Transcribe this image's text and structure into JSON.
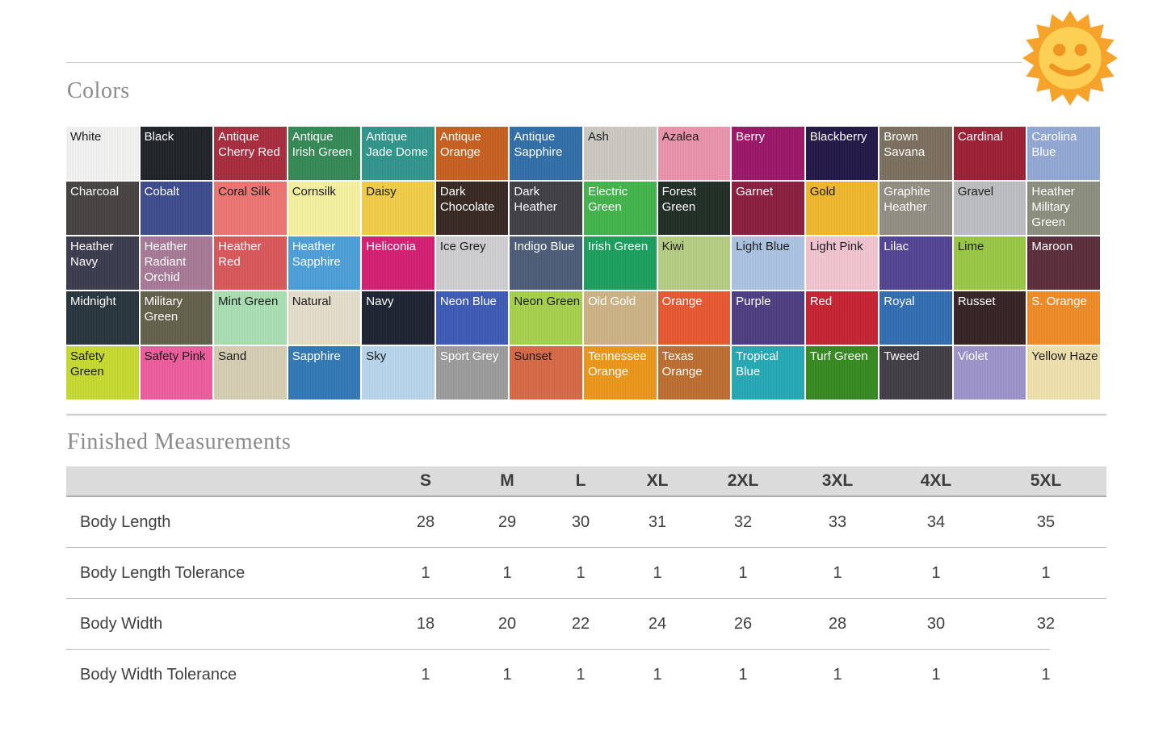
{
  "ui": {
    "heading_text_color": "#8a8a8a",
    "table_header_bg": "#dbdbdb",
    "divider_color": "#b9b9b9",
    "sun_ray_color": "#f5a32b",
    "sun_face_color": "#fccf55",
    "sun_feature_color": "#ef9521"
  },
  "sun_icon": "sun-with-face",
  "colors": {
    "heading": "Colors",
    "swatches": [
      {
        "name": "White",
        "hex": "#f4f4f3",
        "text": "#1c1c1c"
      },
      {
        "name": "Black",
        "hex": "#1d2226",
        "text": "#ffffff"
      },
      {
        "name": "Antique Cherry Red",
        "hex": "#a82a3c",
        "text": "#ffffff"
      },
      {
        "name": "Antique Irish Green",
        "hex": "#338a55",
        "text": "#ffffff"
      },
      {
        "name": "Antique Jade Dome",
        "hex": "#2e958b",
        "text": "#ffffff"
      },
      {
        "name": "Antique Orange",
        "hex": "#c75f1e",
        "text": "#ffffff"
      },
      {
        "name": "Antique Sapphire",
        "hex": "#2f6fa9",
        "text": "#ffffff"
      },
      {
        "name": "Ash",
        "hex": "#cdcac4",
        "text": "#1c1c1c"
      },
      {
        "name": "Azalea",
        "hex": "#ec95ad",
        "text": "#1c1c1c"
      },
      {
        "name": "Berry",
        "hex": "#9d1468",
        "text": "#ffffff"
      },
      {
        "name": "Blackberry",
        "hex": "#211647",
        "text": "#ffffff"
      },
      {
        "name": "Brown Savana",
        "hex": "#7b6f5e",
        "text": "#ffffff"
      },
      {
        "name": "Cardinal",
        "hex": "#9d1c34",
        "text": "#ffffff"
      },
      {
        "name": "Carolina Blue",
        "hex": "#94a9d7",
        "text": "#ffffff"
      },
      {
        "name": "Charcoal",
        "hex": "#454140",
        "text": "#ffffff"
      },
      {
        "name": "Cobalt",
        "hex": "#3d4b8d",
        "text": "#ffffff"
      },
      {
        "name": "Coral Silk",
        "hex": "#ef7573",
        "text": "#1c1c1c"
      },
      {
        "name": "Cornsilk",
        "hex": "#f7f3a1",
        "text": "#1c1c1c"
      },
      {
        "name": "Daisy",
        "hex": "#f3cf47",
        "text": "#1c1c1c"
      },
      {
        "name": "Dark Chocolate",
        "hex": "#352722",
        "text": "#ffffff"
      },
      {
        "name": "Dark Heather",
        "hex": "#3f3e45",
        "text": "#ffffff"
      },
      {
        "name": "Electric Green",
        "hex": "#40b54a",
        "text": "#ffffff"
      },
      {
        "name": "Forest Green",
        "hex": "#1f2c23",
        "text": "#ffffff"
      },
      {
        "name": "Garnet",
        "hex": "#8c1c3e",
        "text": "#ffffff"
      },
      {
        "name": "Gold",
        "hex": "#f2b82c",
        "text": "#1c1c1c"
      },
      {
        "name": "Graphite Heather",
        "hex": "#928e84",
        "text": "#ffffff"
      },
      {
        "name": "Gravel",
        "hex": "#bdbfc3",
        "text": "#1c1c1c"
      },
      {
        "name": "Heather Military Green",
        "hex": "#8c8f7e",
        "text": "#ffffff"
      },
      {
        "name": "Heather Navy",
        "hex": "#393b4d",
        "text": "#ffffff"
      },
      {
        "name": "Heather Radiant Orchid",
        "hex": "#a87997",
        "text": "#ffffff"
      },
      {
        "name": "Heather Red",
        "hex": "#da5659",
        "text": "#ffffff"
      },
      {
        "name": "Heather Sapphire",
        "hex": "#4c9fd9",
        "text": "#ffffff"
      },
      {
        "name": "Heliconia",
        "hex": "#d61d73",
        "text": "#ffffff"
      },
      {
        "name": "Ice Grey",
        "hex": "#d0d0d4",
        "text": "#1c1c1c"
      },
      {
        "name": "Indigo Blue",
        "hex": "#4c5c77",
        "text": "#ffffff"
      },
      {
        "name": "Irish Green",
        "hex": "#18a05d",
        "text": "#ffffff"
      },
      {
        "name": "Kiwi",
        "hex": "#b6cf82",
        "text": "#1c1c1c"
      },
      {
        "name": "Light Blue",
        "hex": "#acc5e3",
        "text": "#1c1c1c"
      },
      {
        "name": "Light Pink",
        "hex": "#f4c6d1",
        "text": "#1c1c1c"
      },
      {
        "name": "Lilac",
        "hex": "#524394",
        "text": "#ffffff"
      },
      {
        "name": "Lime",
        "hex": "#9bc944",
        "text": "#1c1c1c"
      },
      {
        "name": "Maroon",
        "hex": "#5b2b3a",
        "text": "#ffffff"
      },
      {
        "name": "Midnight",
        "hex": "#26343c",
        "text": "#ffffff"
      },
      {
        "name": "Military Green",
        "hex": "#625f49",
        "text": "#ffffff"
      },
      {
        "name": "Mint Green",
        "hex": "#aae0b3",
        "text": "#1c1c1c"
      },
      {
        "name": "Natural",
        "hex": "#e6dfcc",
        "text": "#1c1c1c"
      },
      {
        "name": "Navy",
        "hex": "#1c2231",
        "text": "#ffffff"
      },
      {
        "name": "Neon Blue",
        "hex": "#3c5ab6",
        "text": "#ffffff"
      },
      {
        "name": "Neon Green",
        "hex": "#a8d24b",
        "text": "#1c1c1c"
      },
      {
        "name": "Old Gold",
        "hex": "#cfb486",
        "text": "#ffffff"
      },
      {
        "name": "Orange",
        "hex": "#e95730",
        "text": "#ffffff"
      },
      {
        "name": "Purple",
        "hex": "#4c3c81",
        "text": "#ffffff"
      },
      {
        "name": "Red",
        "hex": "#c6212f",
        "text": "#ffffff"
      },
      {
        "name": "Royal",
        "hex": "#306db3",
        "text": "#ffffff"
      },
      {
        "name": "Russet",
        "hex": "#352223",
        "text": "#ffffff"
      },
      {
        "name": "S. Orange",
        "hex": "#f08b25",
        "text": "#ffffff"
      },
      {
        "name": "Safety Green",
        "hex": "#c8db2d",
        "text": "#1c1c1c"
      },
      {
        "name": "Safety Pink",
        "hex": "#ef5c9e",
        "text": "#1c1c1c"
      },
      {
        "name": "Sand",
        "hex": "#d8d0b4",
        "text": "#1c1c1c"
      },
      {
        "name": "Sapphire",
        "hex": "#3078b7",
        "text": "#ffffff"
      },
      {
        "name": "Sky",
        "hex": "#b9d7ef",
        "text": "#1c1c1c"
      },
      {
        "name": "Sport Grey",
        "hex": "#9c9c9c",
        "text": "#ffffff"
      },
      {
        "name": "Sunset",
        "hex": "#d96845",
        "text": "#1c1c1c"
      },
      {
        "name": "Tennessee Orange",
        "hex": "#ee9719",
        "text": "#ffffff"
      },
      {
        "name": "Texas Orange",
        "hex": "#be6e2d",
        "text": "#ffffff"
      },
      {
        "name": "Tropical Blue",
        "hex": "#23aab5",
        "text": "#ffffff"
      },
      {
        "name": "Turf Green",
        "hex": "#348a1f",
        "text": "#ffffff"
      },
      {
        "name": "Tweed",
        "hex": "#3f3d43",
        "text": "#ffffff"
      },
      {
        "name": "Violet",
        "hex": "#9d93cc",
        "text": "#ffffff"
      },
      {
        "name": "Yellow Haze",
        "hex": "#f2e3ad",
        "text": "#1c1c1c"
      }
    ]
  },
  "measurements": {
    "heading": "Finished Measurements",
    "sizes": [
      "S",
      "M",
      "L",
      "XL",
      "2XL",
      "3XL",
      "4XL",
      "5XL"
    ],
    "rows": [
      {
        "label": "Body Length",
        "values": [
          "28",
          "29",
          "30",
          "31",
          "32",
          "33",
          "34",
          "35"
        ]
      },
      {
        "label": "Body Length Tolerance",
        "values": [
          "1",
          "1",
          "1",
          "1",
          "1",
          "1",
          "1",
          "1"
        ]
      },
      {
        "label": "Body Width",
        "values": [
          "18",
          "20",
          "22",
          "24",
          "26",
          "28",
          "30",
          "32"
        ]
      },
      {
        "label": "Body Width Tolerance",
        "values": [
          "1",
          "1",
          "1",
          "1",
          "1",
          "1",
          "1",
          "1"
        ]
      }
    ]
  }
}
